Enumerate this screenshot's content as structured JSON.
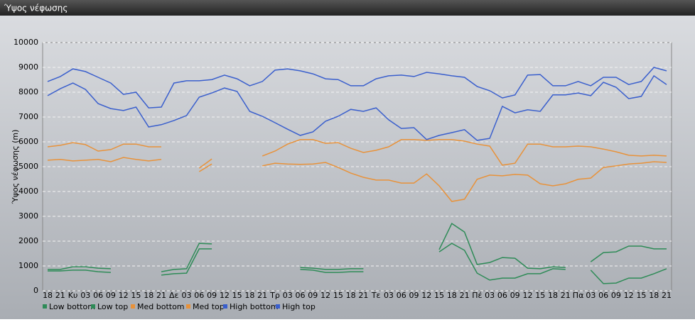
{
  "chart_data": {
    "type": "line",
    "title": "Ύψος νέφωσης",
    "y_label": "Ύψος νέφωσης (m)",
    "categories": [
      "18",
      "21",
      "Κυ",
      "03",
      "06",
      "09",
      "12",
      "15",
      "18",
      "21",
      "Δε",
      "03",
      "06",
      "09",
      "12",
      "15",
      "18",
      "21",
      "Τρ",
      "03",
      "06",
      "09",
      "12",
      "15",
      "18",
      "21",
      "Τε",
      "03",
      "06",
      "09",
      "12",
      "15",
      "18",
      "21",
      "Πέ",
      "03",
      "06",
      "09",
      "12",
      "15",
      "18",
      "21",
      "Πα",
      "03",
      "06",
      "09",
      "12",
      "15",
      "18",
      "21"
    ],
    "ylim": [
      0,
      10000
    ],
    "yticks": [
      0,
      1000,
      2000,
      3000,
      4000,
      5000,
      6000,
      7000,
      8000,
      9000,
      10000
    ],
    "grid": true,
    "series": [
      {
        "name": "Low bottom",
        "color": "#2e8b57",
        "values": [
          800,
          800,
          830,
          830,
          770,
          740,
          null,
          null,
          null,
          630,
          690,
          710,
          1690,
          1690,
          null,
          null,
          null,
          null,
          null,
          null,
          860,
          830,
          740,
          740,
          770,
          770,
          null,
          null,
          null,
          null,
          null,
          1570,
          1910,
          1630,
          710,
          430,
          510,
          510,
          690,
          690,
          890,
          860,
          null,
          830,
          290,
          310,
          510,
          510,
          690,
          890
        ]
      },
      {
        "name": "Low top",
        "color": "#2e8b57",
        "values": [
          860,
          860,
          970,
          970,
          910,
          890,
          null,
          null,
          null,
          770,
          860,
          890,
          1910,
          1890,
          null,
          null,
          null,
          null,
          null,
          null,
          940,
          910,
          860,
          860,
          890,
          890,
          null,
          null,
          null,
          null,
          null,
          1660,
          2710,
          2370,
          1060,
          1140,
          1340,
          1310,
          910,
          890,
          970,
          940,
          null,
          1170,
          1540,
          1570,
          1800,
          1800,
          1690,
          1690
        ]
      },
      {
        "name": "Med bottom",
        "color": "#e8923a",
        "values": [
          5260,
          5290,
          5230,
          5260,
          5290,
          5200,
          5370,
          5290,
          5230,
          5290,
          null,
          null,
          4800,
          5110,
          null,
          null,
          null,
          5030,
          5140,
          5110,
          5090,
          5110,
          5170,
          4970,
          4740,
          4570,
          4460,
          4460,
          4340,
          4340,
          4710,
          4230,
          3600,
          3690,
          4490,
          4660,
          4630,
          4690,
          4660,
          4310,
          4230,
          4310,
          4490,
          4540,
          4970,
          5030,
          5110,
          5140,
          5200,
          5170
        ]
      },
      {
        "name": "Med top",
        "color": "#e8923a",
        "values": [
          5800,
          5860,
          5970,
          5890,
          5630,
          5690,
          5910,
          5910,
          5800,
          5800,
          null,
          null,
          4940,
          5310,
          null,
          null,
          null,
          5430,
          5630,
          5910,
          6090,
          6090,
          5940,
          5970,
          5740,
          5570,
          5660,
          5800,
          6090,
          6090,
          6060,
          6090,
          6090,
          6030,
          5910,
          5830,
          5060,
          5140,
          5910,
          5910,
          5800,
          5800,
          5830,
          5800,
          5710,
          5600,
          5460,
          5430,
          5460,
          5430
        ]
      },
      {
        "name": "High bottom",
        "color": "#3a5fcd",
        "values": [
          7860,
          8140,
          8370,
          8110,
          7540,
          7340,
          7260,
          7400,
          6600,
          6690,
          6860,
          7060,
          7800,
          7970,
          8170,
          8030,
          7230,
          7030,
          6770,
          6510,
          6260,
          6400,
          6830,
          7030,
          7310,
          7230,
          7370,
          6890,
          6540,
          6570,
          6090,
          6260,
          6370,
          6490,
          6060,
          6140,
          7430,
          7170,
          7290,
          7230,
          7890,
          7890,
          7970,
          7860,
          8400,
          8200,
          7740,
          7830,
          8660,
          8310
        ]
      },
      {
        "name": "High top",
        "color": "#3a5fcd",
        "values": [
          8430,
          8630,
          8940,
          8830,
          8600,
          8370,
          7910,
          8000,
          7370,
          7400,
          8370,
          8460,
          8460,
          8510,
          8690,
          8540,
          8260,
          8430,
          8890,
          8940,
          8860,
          8740,
          8540,
          8510,
          8260,
          8260,
          8540,
          8660,
          8690,
          8630,
          8800,
          8740,
          8660,
          8600,
          8230,
          8060,
          7770,
          7890,
          8690,
          8710,
          8260,
          8260,
          8430,
          8260,
          8600,
          8600,
          8310,
          8430,
          9000,
          8860
        ]
      }
    ]
  }
}
